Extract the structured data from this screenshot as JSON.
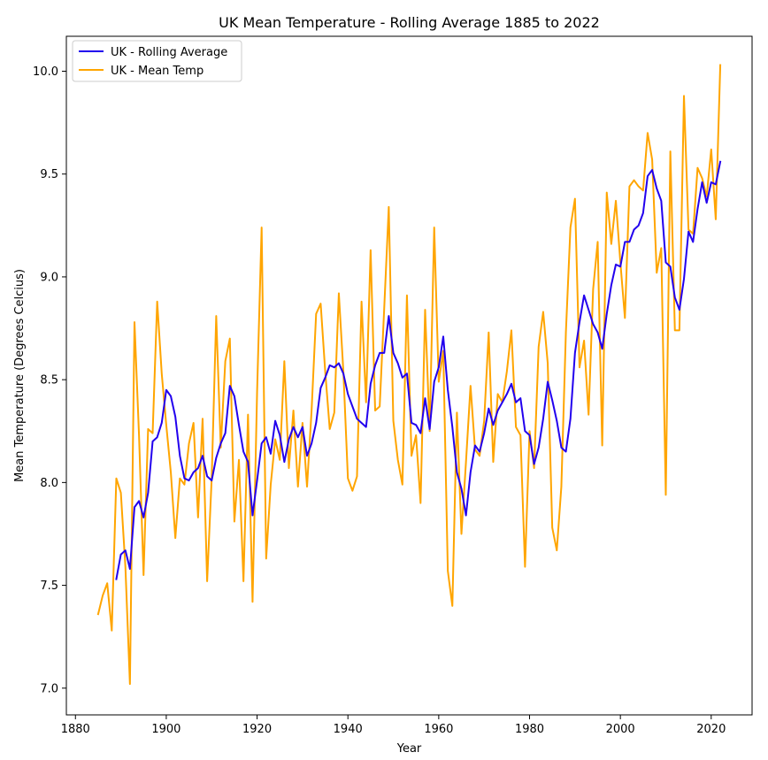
{
  "chart_data": {
    "type": "line",
    "title": "UK Mean Temperature - Rolling Average 1885 to 2022",
    "xlabel": "Year",
    "ylabel": "Mean Temperature (Degrees Celcius)",
    "xlim": [
      1878,
      2029
    ],
    "ylim": [
      6.87,
      10.17
    ],
    "xticks": [
      1880,
      1900,
      1920,
      1940,
      1960,
      1980,
      2000,
      2020
    ],
    "yticks": [
      7.0,
      7.5,
      8.0,
      8.5,
      9.0,
      9.5,
      10.0
    ],
    "ytick_labels": [
      "7.0",
      "7.5",
      "8.0",
      "8.5",
      "9.0",
      "9.5",
      "10.0"
    ],
    "legend_position": "top-left",
    "grid": false,
    "series": [
      {
        "name": "UK - Rolling Average",
        "color": "#2200ee",
        "x": [
          1889,
          1890,
          1891,
          1892,
          1893,
          1894,
          1895,
          1896,
          1897,
          1898,
          1899,
          1900,
          1901,
          1902,
          1903,
          1904,
          1905,
          1906,
          1907,
          1908,
          1909,
          1910,
          1911,
          1912,
          1913,
          1914,
          1915,
          1916,
          1917,
          1918,
          1919,
          1920,
          1921,
          1922,
          1923,
          1924,
          1925,
          1926,
          1927,
          1928,
          1929,
          1930,
          1931,
          1932,
          1933,
          1934,
          1935,
          1936,
          1937,
          1938,
          1939,
          1940,
          1941,
          1942,
          1943,
          1944,
          1945,
          1946,
          1947,
          1948,
          1949,
          1950,
          1951,
          1952,
          1953,
          1954,
          1955,
          1956,
          1957,
          1958,
          1959,
          1960,
          1961,
          1962,
          1963,
          1964,
          1965,
          1966,
          1967,
          1968,
          1969,
          1970,
          1971,
          1972,
          1973,
          1974,
          1975,
          1976,
          1977,
          1978,
          1979,
          1980,
          1981,
          1982,
          1983,
          1984,
          1985,
          1986,
          1987,
          1988,
          1989,
          1990,
          1991,
          1992,
          1993,
          1994,
          1995,
          1996,
          1997,
          1998,
          1999,
          2000,
          2001,
          2002,
          2003,
          2004,
          2005,
          2006,
          2007,
          2008,
          2009,
          2010,
          2011,
          2012,
          2013,
          2014,
          2015,
          2016,
          2017,
          2018,
          2019,
          2020,
          2021,
          2022
        ],
        "values": [
          7.53,
          7.65,
          7.67,
          7.58,
          7.88,
          7.91,
          7.83,
          7.95,
          8.2,
          8.22,
          8.29,
          8.45,
          8.42,
          8.32,
          8.13,
          8.02,
          8.01,
          8.05,
          8.07,
          8.13,
          8.03,
          8.01,
          8.12,
          8.19,
          8.24,
          8.47,
          8.42,
          8.28,
          8.15,
          8.1,
          7.84,
          8.01,
          8.19,
          8.22,
          8.14,
          8.3,
          8.23,
          8.1,
          8.21,
          8.27,
          8.22,
          8.27,
          8.13,
          8.19,
          8.29,
          8.46,
          8.51,
          8.57,
          8.56,
          8.58,
          8.53,
          8.43,
          8.37,
          8.31,
          8.29,
          8.27,
          8.48,
          8.57,
          8.63,
          8.63,
          8.81,
          8.63,
          8.58,
          8.51,
          8.53,
          8.29,
          8.28,
          8.24,
          8.41,
          8.26,
          8.49,
          8.56,
          8.71,
          8.45,
          8.27,
          8.05,
          7.97,
          7.84,
          8.05,
          8.18,
          8.15,
          8.24,
          8.36,
          8.28,
          8.35,
          8.39,
          8.43,
          8.48,
          8.39,
          8.41,
          8.25,
          8.23,
          8.09,
          8.17,
          8.31,
          8.49,
          8.4,
          8.3,
          8.17,
          8.15,
          8.31,
          8.63,
          8.78,
          8.91,
          8.84,
          8.77,
          8.73,
          8.65,
          8.82,
          8.96,
          9.06,
          9.05,
          9.17,
          9.17,
          9.23,
          9.25,
          9.31,
          9.49,
          9.52,
          9.43,
          9.37,
          9.07,
          9.05,
          8.9,
          8.84,
          8.99,
          9.22,
          9.17,
          9.33,
          9.46,
          9.36,
          9.46,
          9.45,
          9.56
        ]
      },
      {
        "name": "UK - Mean Temp",
        "color": "#ffa500",
        "x": [
          1885,
          1886,
          1887,
          1888,
          1889,
          1890,
          1891,
          1892,
          1893,
          1894,
          1895,
          1896,
          1897,
          1898,
          1899,
          1900,
          1901,
          1902,
          1903,
          1904,
          1905,
          1906,
          1907,
          1908,
          1909,
          1910,
          1911,
          1912,
          1913,
          1914,
          1915,
          1916,
          1917,
          1918,
          1919,
          1920,
          1921,
          1922,
          1923,
          1924,
          1925,
          1926,
          1927,
          1928,
          1929,
          1930,
          1931,
          1932,
          1933,
          1934,
          1935,
          1936,
          1937,
          1938,
          1939,
          1940,
          1941,
          1942,
          1943,
          1944,
          1945,
          1946,
          1947,
          1948,
          1949,
          1950,
          1951,
          1952,
          1953,
          1954,
          1955,
          1956,
          1957,
          1958,
          1959,
          1960,
          1961,
          1962,
          1963,
          1964,
          1965,
          1966,
          1967,
          1968,
          1969,
          1970,
          1971,
          1972,
          1973,
          1974,
          1975,
          1976,
          1977,
          1978,
          1979,
          1980,
          1981,
          1982,
          1983,
          1984,
          1985,
          1986,
          1987,
          1988,
          1989,
          1990,
          1991,
          1992,
          1993,
          1994,
          1995,
          1996,
          1997,
          1998,
          1999,
          2000,
          2001,
          2002,
          2003,
          2004,
          2005,
          2006,
          2007,
          2008,
          2009,
          2010,
          2011,
          2012,
          2013,
          2014,
          2015,
          2016,
          2017,
          2018,
          2019,
          2020,
          2021,
          2022
        ],
        "values": [
          7.36,
          7.45,
          7.51,
          7.28,
          8.02,
          7.95,
          7.59,
          7.02,
          8.78,
          8.23,
          7.55,
          8.26,
          8.24,
          8.88,
          8.53,
          8.28,
          8.05,
          7.73,
          8.02,
          7.99,
          8.19,
          8.29,
          7.83,
          8.31,
          7.52,
          8.02,
          8.81,
          8.17,
          8.59,
          8.7,
          7.81,
          8.11,
          7.52,
          8.33,
          7.42,
          8.44,
          9.24,
          7.63,
          7.99,
          8.21,
          8.11,
          8.59,
          8.07,
          8.35,
          7.98,
          8.29,
          7.98,
          8.35,
          8.82,
          8.87,
          8.54,
          8.26,
          8.34,
          8.92,
          8.54,
          8.02,
          7.96,
          8.03,
          8.88,
          8.39,
          9.13,
          8.35,
          8.37,
          8.85,
          9.34,
          8.3,
          8.11,
          7.99,
          8.91,
          8.13,
          8.23,
          7.9,
          8.84,
          8.25,
          9.24,
          8.49,
          8.64,
          7.57,
          7.4,
          8.34,
          7.75,
          8.1,
          8.47,
          8.16,
          8.13,
          8.3,
          8.73,
          8.1,
          8.43,
          8.39,
          8.54,
          8.74,
          8.27,
          8.23,
          7.59,
          8.25,
          8.07,
          8.66,
          8.83,
          8.58,
          7.78,
          7.67,
          7.98,
          8.73,
          9.24,
          9.38,
          8.56,
          8.69,
          8.33,
          8.94,
          9.17,
          8.18,
          9.41,
          9.16,
          9.37,
          9.07,
          8.8,
          9.44,
          9.47,
          9.44,
          9.42,
          9.7,
          9.57,
          9.02,
          9.14,
          7.94,
          9.61,
          8.74,
          8.74,
          9.88,
          9.23,
          9.21,
          9.53,
          9.48,
          9.39,
          9.62,
          9.28,
          10.03
        ]
      }
    ]
  }
}
